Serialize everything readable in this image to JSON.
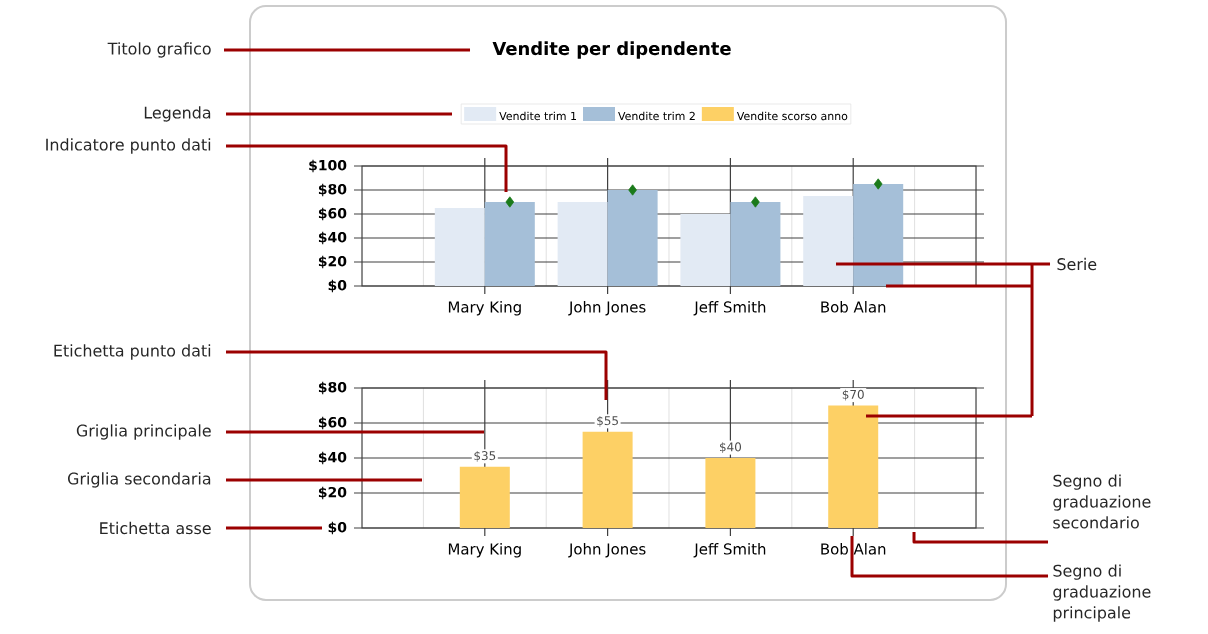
{
  "chart_data": [
    {
      "type": "bar",
      "title": "Vendite per dipendente",
      "categories": [
        "Mary King",
        "John Jones",
        "Jeff Smith",
        "Bob Alan"
      ],
      "series": [
        {
          "name": "Vendite trim 1",
          "color": "#e2eaf4",
          "values": [
            65,
            70,
            60,
            75
          ]
        },
        {
          "name": "Vendite trim 2",
          "color": "#a5bfd8",
          "values": [
            70,
            80,
            70,
            85
          ]
        },
        {
          "type": "scatter",
          "color": "#1a7a1a",
          "x": [
            "Mary King",
            "John Jones",
            "Jeff Smith",
            "Bob Alan"
          ],
          "values": [
            70,
            80,
            70,
            85
          ],
          "marker": "diamond"
        }
      ],
      "ylim": [
        0,
        100
      ],
      "yticks": [
        {
          "value": 0,
          "label": "$0"
        },
        {
          "value": 20,
          "label": "$20"
        },
        {
          "value": 40,
          "label": "$40"
        },
        {
          "value": 60,
          "label": "$60"
        },
        {
          "value": 80,
          "label": "$80"
        },
        {
          "value": 100,
          "label": "$100"
        }
      ],
      "grid": true,
      "legend": "top",
      "annotations": [
        "Titolo grafico",
        "Legenda",
        "Indicatore punto dati",
        "Serie"
      ]
    },
    {
      "type": "bar",
      "categories": [
        "Mary King",
        "John Jones",
        "Jeff Smith",
        "Bob Alan"
      ],
      "series": [
        {
          "name": "Vendite scorso anno",
          "color": "#fdd065",
          "values": [
            35,
            55,
            40,
            70
          ],
          "value_labels": [
            "$35",
            "$55",
            "$40",
            "$70"
          ]
        }
      ],
      "ylim": [
        0,
        80
      ],
      "yticks": [
        {
          "value": 0,
          "label": "$0"
        },
        {
          "value": 20,
          "label": "$20"
        },
        {
          "value": 40,
          "label": "$40"
        },
        {
          "value": 60,
          "label": "$60"
        },
        {
          "value": 80,
          "label": "$80"
        }
      ],
      "grid": true,
      "legend": "top",
      "annotations": [
        "Etichetta punto dati",
        "Griglia principale",
        "Griglia secondaria",
        "Etichetta asse",
        "Segno di graduazione secondario",
        "Segno di graduazione principale"
      ]
    }
  ]
}
